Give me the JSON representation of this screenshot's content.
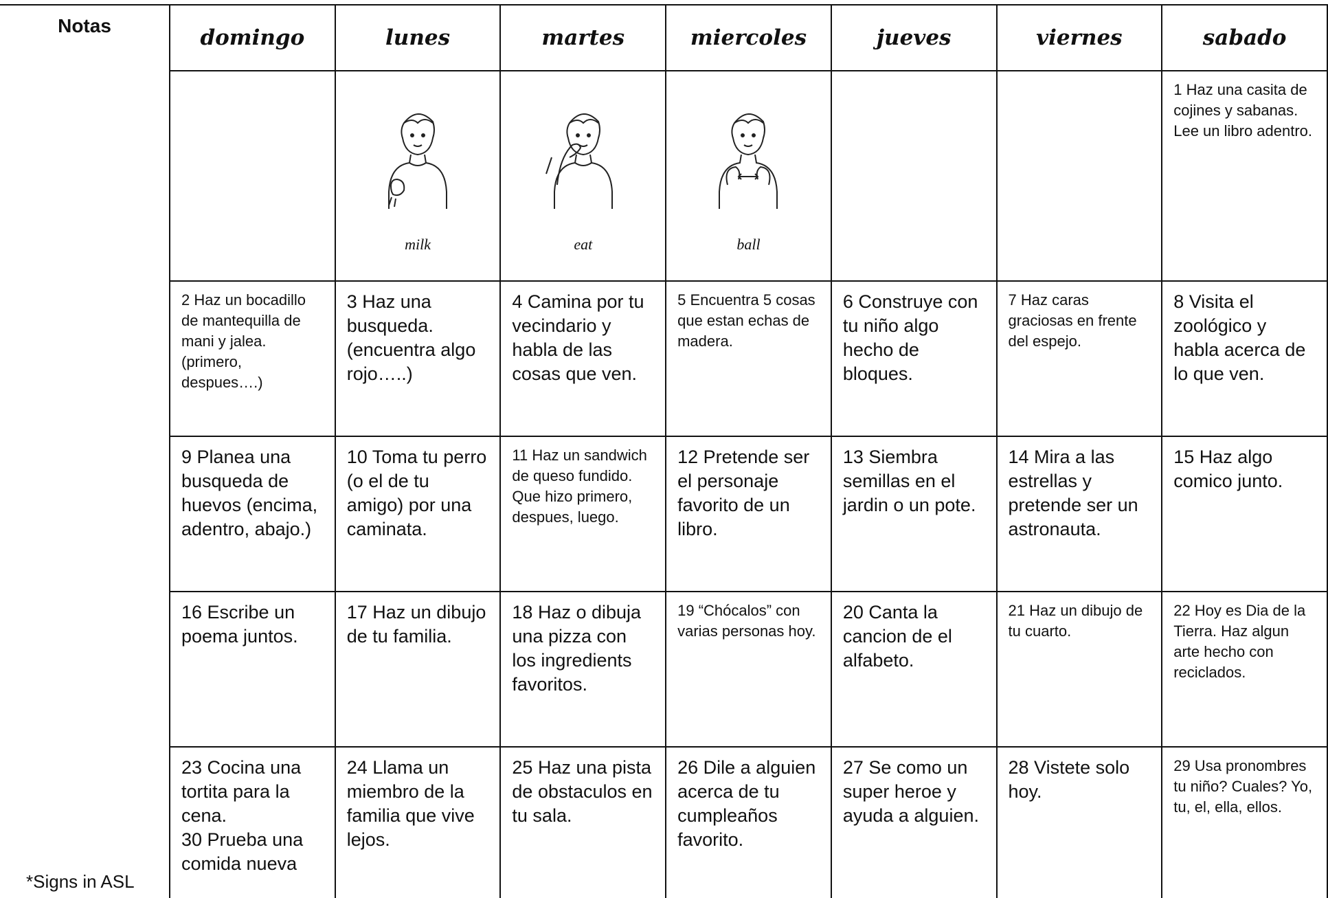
{
  "notes_title": "Notas",
  "footnote": "*Signs in ASL",
  "days": [
    "domingo",
    "lunes",
    "martes",
    "miercoles",
    "jueves",
    "viernes",
    "sabado"
  ],
  "week1": {
    "signs": [
      "milk",
      "eat",
      "ball"
    ],
    "sabado": "1 Haz una casita de cojines y sabanas. Lee un libro adentro."
  },
  "weeks": [
    [
      "2 Haz un bocadillo de mantequilla de mani y jalea. (primero, despues….)",
      "3 Haz una busqueda. (encuentra algo rojo…..)",
      "4 Camina por tu vecindario y habla de las cosas que ven.",
      "5 Encuentra 5 cosas que estan echas de madera.",
      "6 Construye con tu niño algo hecho de bloques.",
      "7 Haz caras graciosas en frente del espejo.",
      "8 Visita el zoológico y habla acerca de lo que ven."
    ],
    [
      "9 Planea una busqueda de huevos (encima, adentro, abajo.)",
      "10 Toma tu perro (o el de tu amigo) por una caminata.",
      "11 Haz un sandwich de queso fundido. Que hizo primero, despues, luego.",
      "12 Pretende ser el personaje favorito de un libro.",
      "13 Siembra semillas en el jardin o un pote.",
      "14 Mira a las estrellas y pretende ser un astronauta.",
      "15 Haz algo comico junto."
    ],
    [
      "16 Escribe un poema juntos.",
      "17 Haz un dibujo de tu familia.",
      "18 Haz o dibuja una pizza con los ingredients favoritos.",
      "19 “Chócalos” con varias personas hoy.",
      "20 Canta la cancion de el alfabeto.",
      "21 Haz un dibujo de tu cuarto.",
      "22 Hoy es Dia de la Tierra. Haz algun arte hecho con reciclados."
    ],
    [
      "23 Cocina una tortita para la cena.\n30 Prueba una comida nueva",
      "24 Llama un miembro de la familia que vive lejos.",
      "25 Haz una pista de obstaculos  en tu sala.",
      "26 Dile a alguien acerca de tu cumpleaños favorito.",
      "27 Se como un super heroe y ayuda a alguien.",
      "28 Vistete solo hoy.",
      "29 Usa pronombres tu niño? Cuales? Yo, tu, el, ella, ellos."
    ]
  ]
}
